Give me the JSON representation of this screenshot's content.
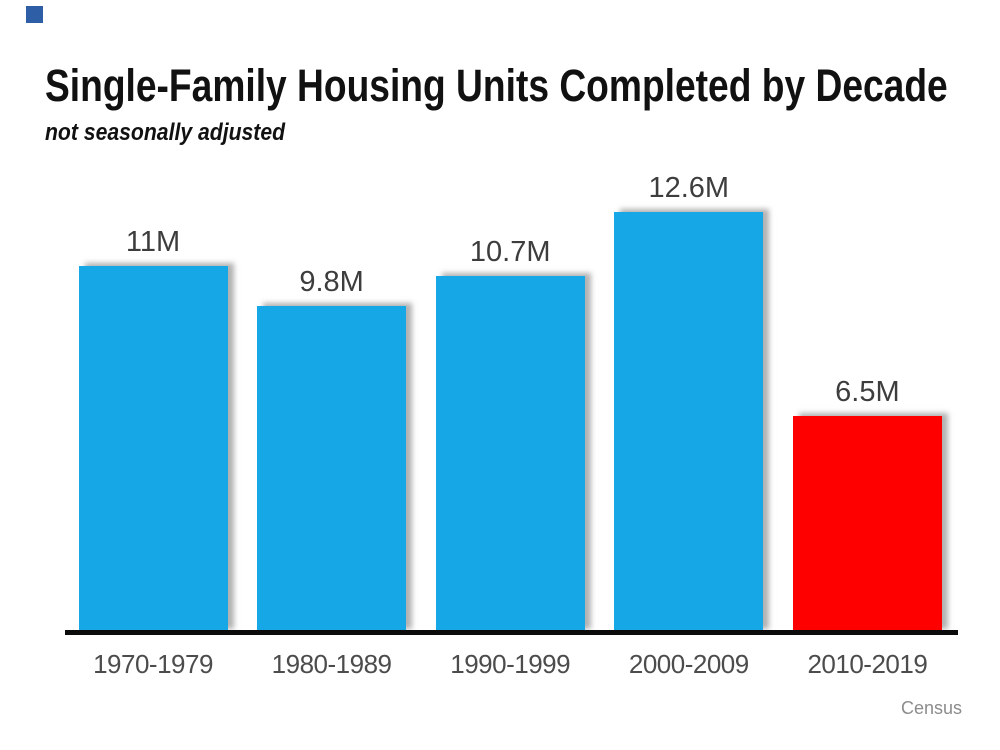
{
  "slide": {
    "title": "Single-Family Housing Units Completed by Decade",
    "subtitle": "not seasonally adjusted",
    "source": "Census"
  },
  "chart_data": {
    "type": "bar",
    "title": "Single-Family Housing Units Completed by Decade",
    "subtitle": "not seasonally adjusted",
    "categories": [
      "1970-1979",
      "1980-1989",
      "1990-1999",
      "2000-2009",
      "2010-2019"
    ],
    "values": [
      11,
      9.8,
      10.7,
      12.6,
      6.5
    ],
    "value_labels": [
      "11M",
      "9.8M",
      "10.7M",
      "12.6M",
      "6.5M"
    ],
    "units": "millions of housing units",
    "bar_colors": [
      "#16a8e6",
      "#16a8e6",
      "#16a8e6",
      "#16a8e6",
      "#ff0000"
    ],
    "highlight_index": 4,
    "ylim": [
      0,
      13
    ],
    "grid": false,
    "legend": false,
    "y_axis_shown": false,
    "source": "Census"
  },
  "style": {
    "background": "#ffffff",
    "accent_blue": "#16a8e6",
    "highlight_red": "#ff0000",
    "axis_color": "#0b0b0b",
    "value_label_color": "#3d3d3d",
    "category_label_color": "#4c4c4c",
    "source_color": "#8c8c8c",
    "corner_square_color": "#2e5ea6"
  }
}
